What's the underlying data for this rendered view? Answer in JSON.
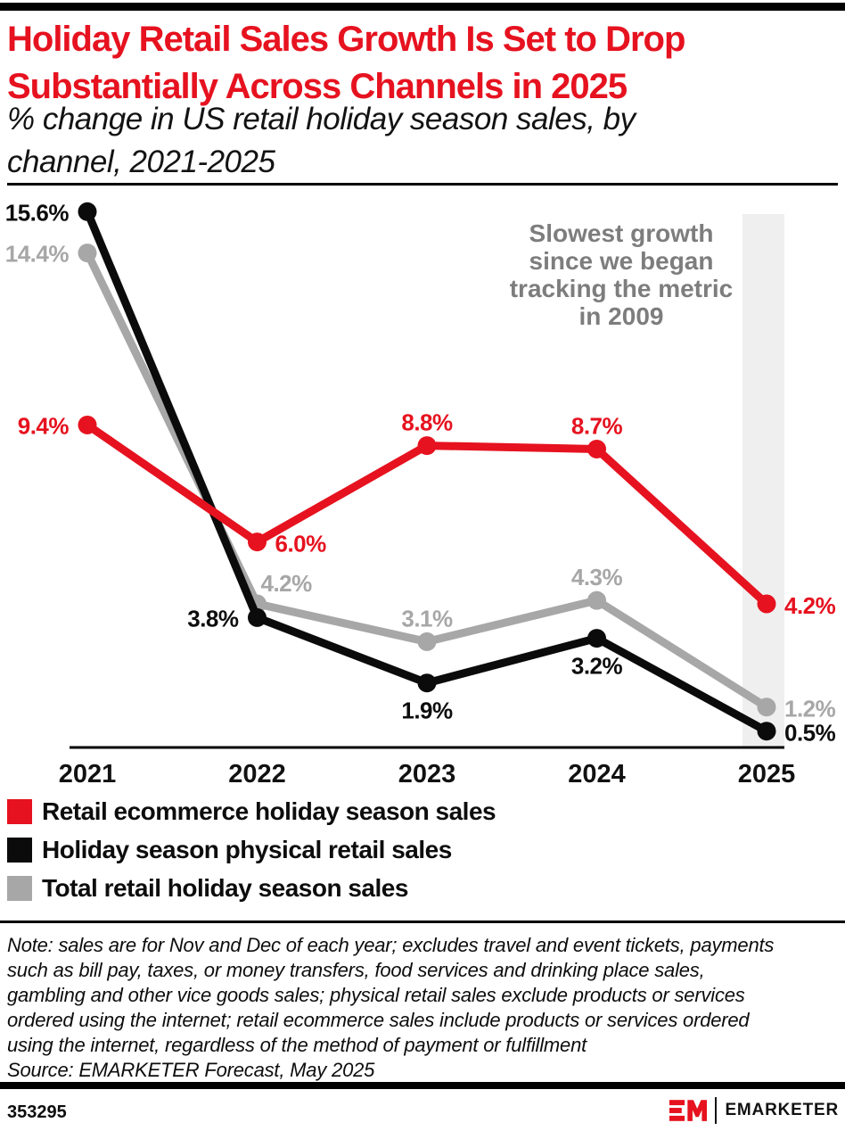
{
  "page": {
    "accent_color": "#e6121f",
    "title": "Holiday Retail Sales Growth Is Set to Drop\nSubstantially Across Channels in 2025",
    "subtitle": "% change in US retail holiday season sales, by\nchannel, 2021-2025"
  },
  "chart_data": {
    "type": "line",
    "categories": [
      "2021",
      "2022",
      "2023",
      "2024",
      "2025"
    ],
    "series": [
      {
        "name": "Retail ecommerce holiday season sales",
        "color": "#e6121f",
        "values": [
          9.4,
          6.0,
          8.8,
          8.7,
          4.2
        ],
        "label_pos": [
          "left",
          "right",
          "above",
          "above",
          "right"
        ]
      },
      {
        "name": "Holiday season physical retail sales",
        "color": "#0b0b0b",
        "label_color": "#0d0d0d",
        "values": [
          15.6,
          3.8,
          1.9,
          3.2,
          0.5
        ],
        "label_pos": [
          "left",
          "left",
          "below",
          "below",
          "right"
        ]
      },
      {
        "name": "Total retail holiday season sales",
        "color": "#a7a7a7",
        "values": [
          14.4,
          4.2,
          3.1,
          4.3,
          1.2
        ],
        "label_pos": [
          "left",
          "above-right",
          "above",
          "above",
          "right"
        ]
      }
    ],
    "value_suffix": "%",
    "ylim": [
      0,
      16.5
    ],
    "grid": false,
    "legend_position": "bottom-left",
    "highlight_category": "2025",
    "highlight_color": "#efefef",
    "annotation": "Slowest growth\nsince we began\ntracking the metric\nin 2009",
    "annotation_color": "#7d7d7d"
  },
  "note": {
    "text": "Note: sales are for Nov and Dec of each year; excludes travel and event tickets, payments\nsuch as bill pay, taxes, or money transfers, food services and drinking place sales,\ngambling and other vice goods sales; physical retail sales exclude products or services\nordered using the internet; retail ecommerce sales include products or services ordered\nusing the internet, regardless of the method of payment or fulfillment",
    "source": "Source: EMARKETER Forecast, May 2025"
  },
  "footer": {
    "chart_id": "353295",
    "logo_monogram": "EM",
    "logo_wordmark": "EMARKETER"
  }
}
